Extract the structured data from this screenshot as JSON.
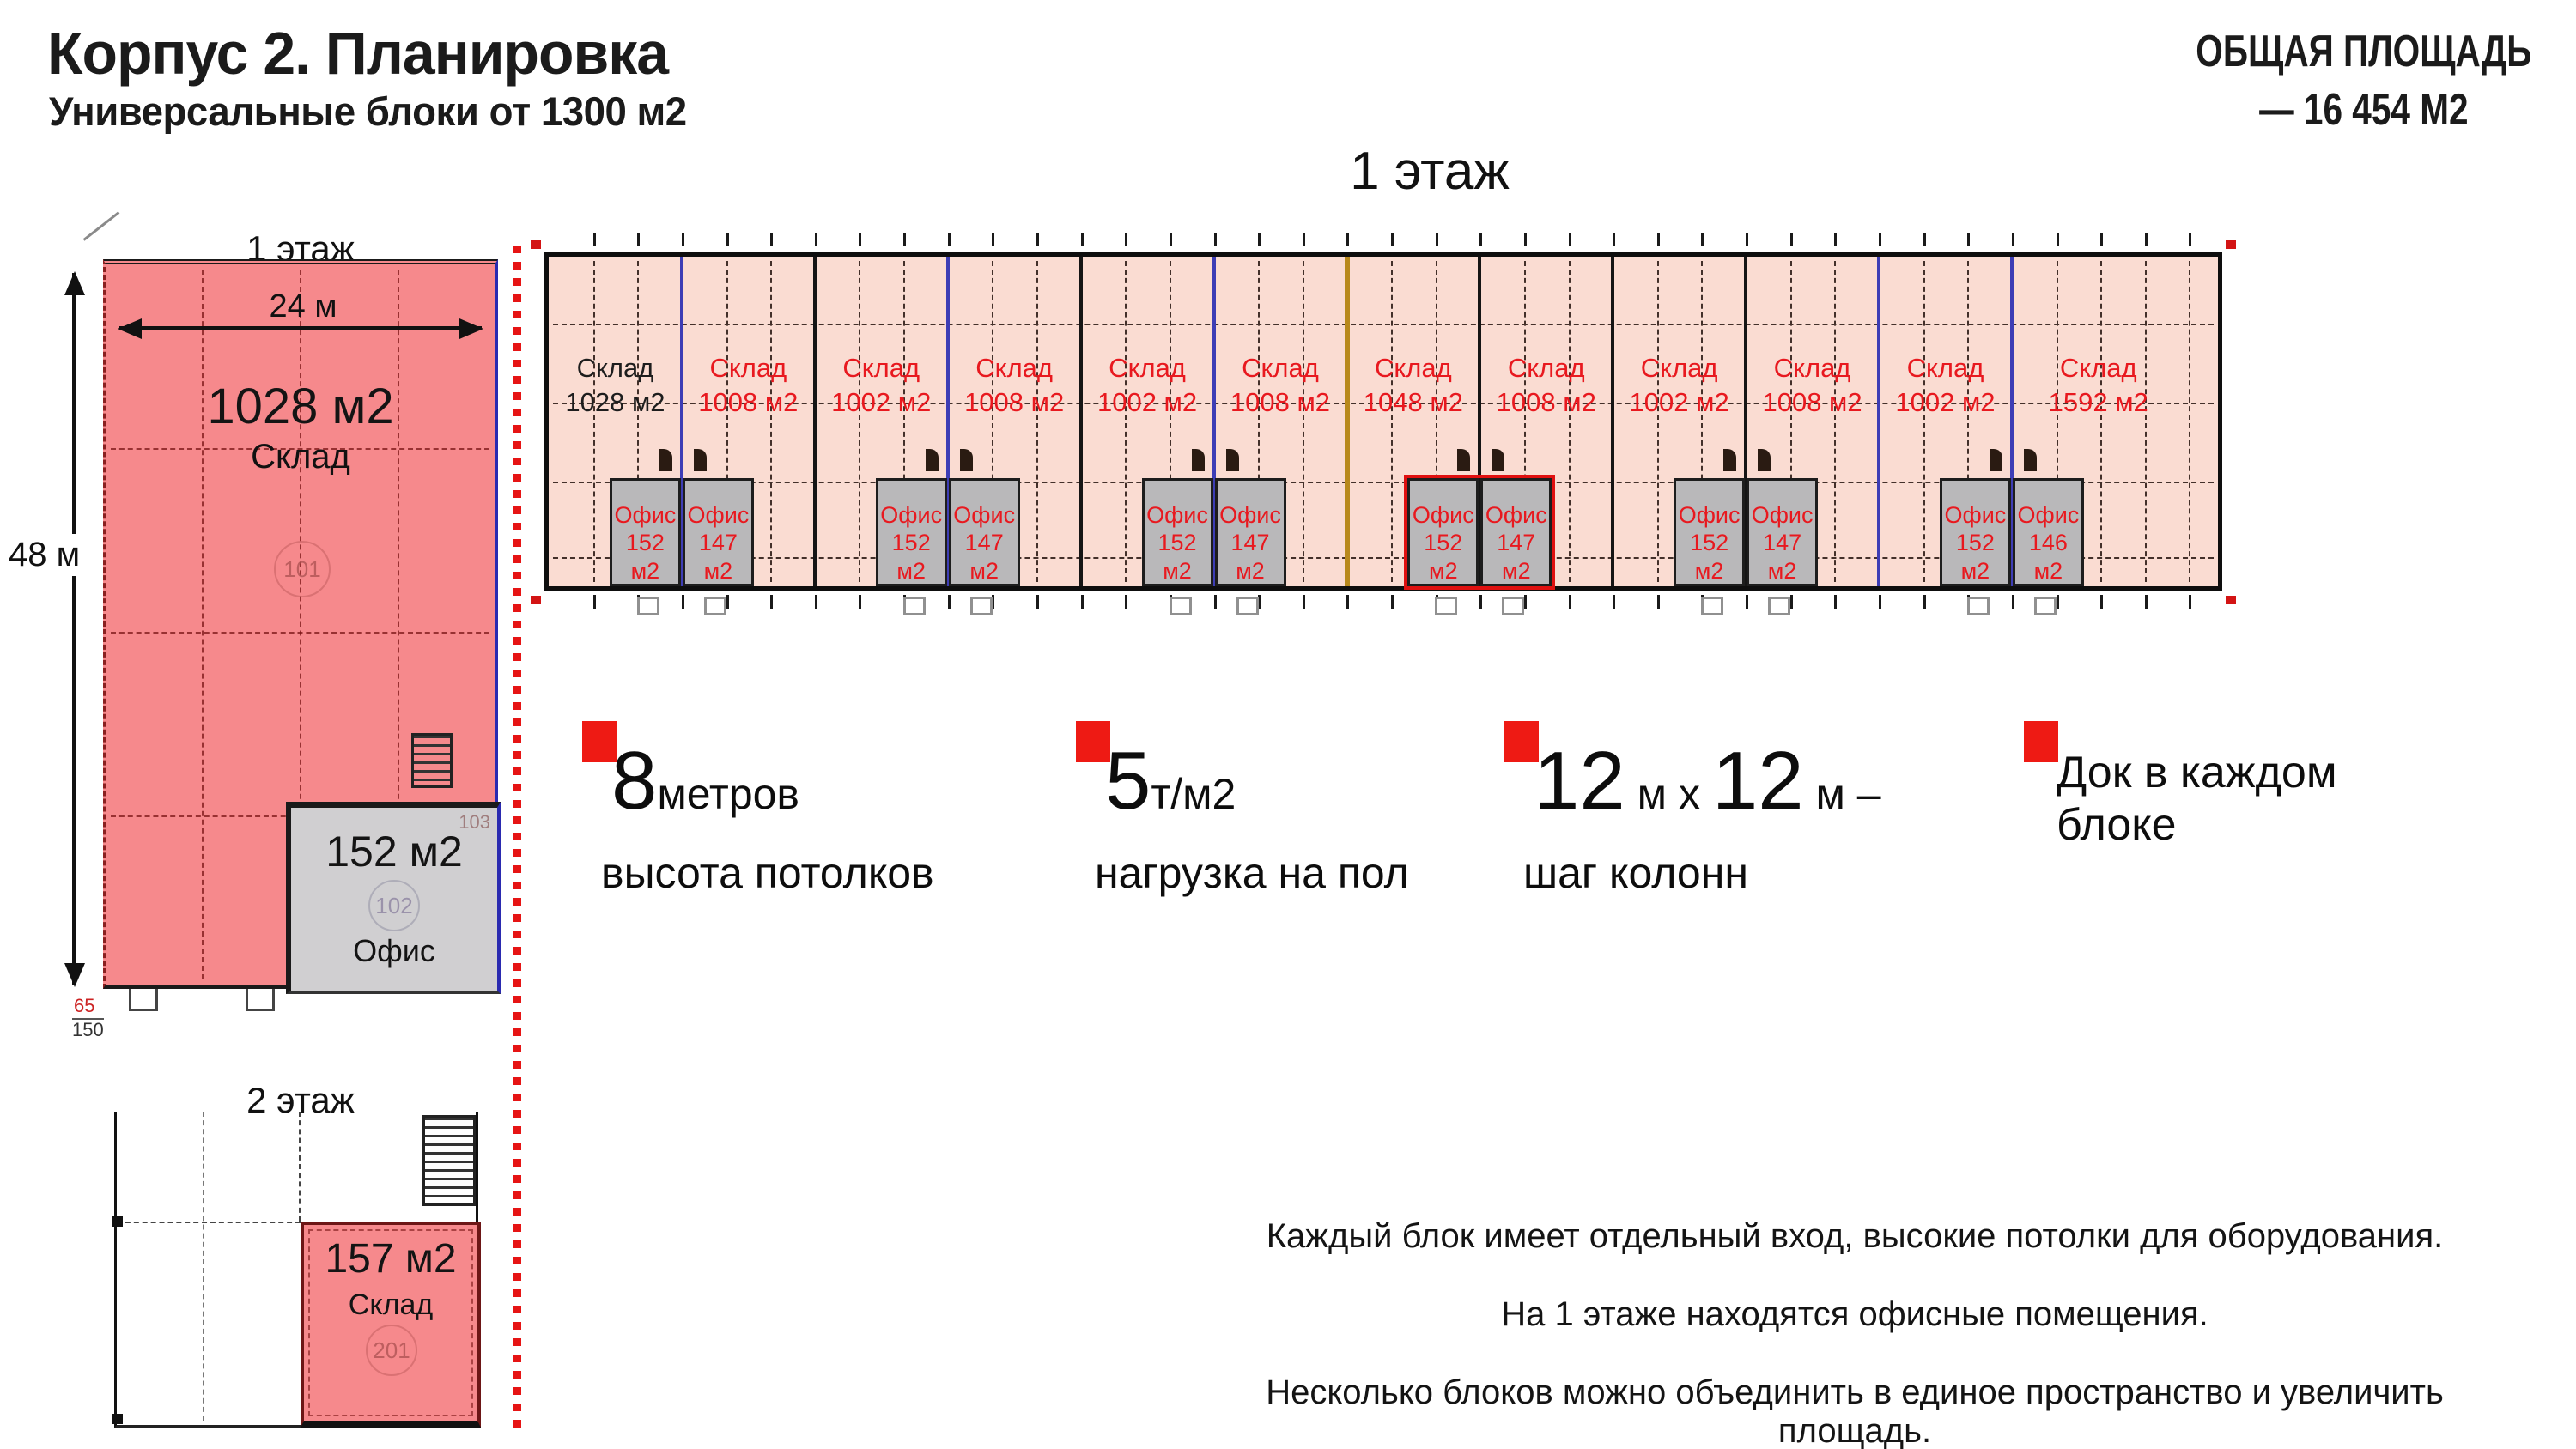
{
  "header": {
    "title": "Корпус 2. Планировка",
    "subtitle": "Универсальные блоки от 1300 м2"
  },
  "total_area": {
    "line1": "ОБЩАЯ ПЛОЩАДЬ",
    "line2": "— 16 454  М2"
  },
  "left_floor1": {
    "label": "1 этаж",
    "width_dim": "24 м",
    "height_dim": "48 м",
    "warehouse_area": "1028 м2",
    "warehouse_name": "Склад",
    "warehouse_room": "101",
    "office_area": "152 м2",
    "office_room": "102",
    "office_room2": "103",
    "office_name": "Офис",
    "dim_red": "65",
    "dim_black": "150"
  },
  "floor2": {
    "label": "2 этаж",
    "block_area": "157 м2",
    "block_name": "Склад",
    "block_room": "201"
  },
  "main_plan": {
    "title": "1 этаж",
    "blocks": [
      {
        "name": "Склад",
        "area": "1028 м2",
        "text_color": "#1d1d1d",
        "wide": false
      },
      {
        "name": "Склад",
        "area": "1008 м2",
        "text_color": "#e8191f",
        "wide": false
      },
      {
        "name": "Склад",
        "area": "1002 м2",
        "text_color": "#e8191f",
        "wide": false
      },
      {
        "name": "Склад",
        "area": "1008 м2",
        "text_color": "#e8191f",
        "wide": false
      },
      {
        "name": "Склад",
        "area": "1002 м2",
        "text_color": "#e8191f",
        "wide": false
      },
      {
        "name": "Склад",
        "area": "1008 м2",
        "text_color": "#e8191f",
        "wide": false
      },
      {
        "name": "Склад",
        "area": "1048 м2",
        "text_color": "#e8191f",
        "wide": false
      },
      {
        "name": "Склад",
        "area": "1008 м2",
        "text_color": "#e8191f",
        "wide": false
      },
      {
        "name": "Склад",
        "area": "1002 м2",
        "text_color": "#e8191f",
        "wide": false
      },
      {
        "name": "Склад",
        "area": "1008 м2",
        "text_color": "#e8191f",
        "wide": false
      },
      {
        "name": "Склад",
        "area": "1002 м2",
        "text_color": "#e8191f",
        "wide": false
      },
      {
        "name": "Склад",
        "area": "1592 м2",
        "text_color": "#e8191f",
        "wide": true
      }
    ],
    "divider_colors": [
      "#3d3db5",
      "#151515",
      "#3d3db5",
      "#151515",
      "#3d3db5",
      "#b8891c",
      "#151515",
      "#151515",
      "#151515",
      "#3d3db5",
      "#3d3db5"
    ],
    "office_pairs": [
      {
        "junction": 1,
        "highlighted": false,
        "cells": [
          {
            "name": "Офис",
            "area": "152 м2"
          },
          {
            "name": "Офис",
            "area": "147 м2"
          }
        ]
      },
      {
        "junction": 3,
        "highlighted": false,
        "cells": [
          {
            "name": "Офис",
            "area": "152 м2"
          },
          {
            "name": "Офис",
            "area": "147 м2"
          }
        ]
      },
      {
        "junction": 5,
        "highlighted": false,
        "cells": [
          {
            "name": "Офис",
            "area": "152 м2"
          },
          {
            "name": "Офис",
            "area": "147 м2"
          }
        ]
      },
      {
        "junction": 7,
        "highlighted": true,
        "cells": [
          {
            "name": "Офис",
            "area": "152 м2"
          },
          {
            "name": "Офис",
            "area": "147 м2"
          }
        ]
      },
      {
        "junction": 9,
        "highlighted": false,
        "cells": [
          {
            "name": "Офис",
            "area": "152 м2"
          },
          {
            "name": "Офис",
            "area": "147 м2"
          }
        ]
      },
      {
        "junction": 11,
        "highlighted": false,
        "cells": [
          {
            "name": "Офис",
            "area": "152 м2"
          },
          {
            "name": "Офис",
            "area": "146 м2"
          }
        ]
      }
    ]
  },
  "features": [
    {
      "value_big": "8",
      "value_small": "метров",
      "caption": "высота потолков"
    },
    {
      "value_big": "5",
      "value_small": "т/м2",
      "caption": "нагрузка на пол"
    },
    {
      "value_big": "12",
      "value_mid": " м x ",
      "value_big2": "12",
      "value_tail": " м –",
      "caption": "шаг колонн"
    },
    {
      "line1": "Док в каждом",
      "line2": "блоке"
    }
  ],
  "notes": [
    "Каждый блок имеет отдельный вход, высокие потолки для оборудования.",
    "На 1 этаже находятся офисные помещения.",
    "Несколько блоков можно объединить в единое пространство и увеличить площадь."
  ],
  "colors": {
    "plan_pink": "#f6898c",
    "plan_peach": "#fadcd2",
    "office_gray": "#b9b8ba",
    "red_text": "#e8191f",
    "accent_red": "#ee1a14",
    "blue_divider": "#3d3db5",
    "gold_divider": "#b8891c"
  }
}
